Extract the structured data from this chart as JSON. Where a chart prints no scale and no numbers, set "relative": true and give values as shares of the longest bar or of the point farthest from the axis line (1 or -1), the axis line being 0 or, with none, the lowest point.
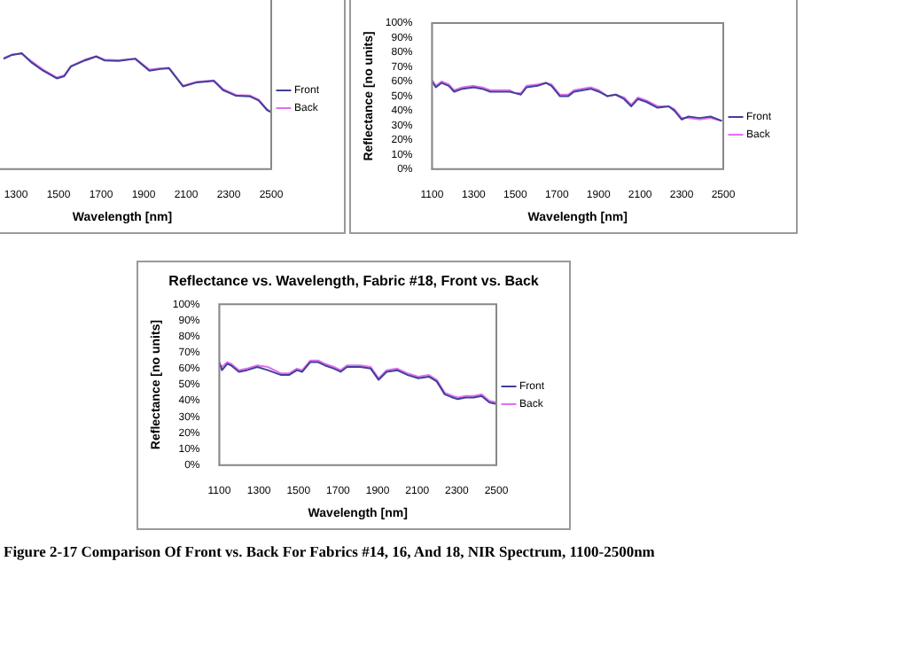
{
  "chart_data": [
    {
      "type": "line",
      "relative": true,
      "xlabel": "Wavelength [nm]",
      "legend": "right",
      "marker": "none",
      "line_style": "solid",
      "grid": false,
      "tick_labels": "x",
      "xlim": [
        1100,
        2500
      ],
      "xticks": [
        1300,
        1500,
        1700,
        1900,
        2100,
        2300,
        2500
      ],
      "series": [
        {
          "name": "Front",
          "color": "#404098",
          "x": [
            1242,
            1282,
            1327,
            1374,
            1427,
            1492,
            1527,
            1558,
            1624,
            1677,
            1716,
            1782,
            1861,
            1927,
            1980,
            2019,
            2085,
            2151,
            2230,
            2275,
            2335,
            2401,
            2441,
            2481,
            2500
          ],
          "values": [
            0.952,
            0.986,
            1,
            0.919,
            0.85,
            0.783,
            0.802,
            0.885,
            0.938,
            0.972,
            0.938,
            0.933,
            0.952,
            0.85,
            0.864,
            0.871,
            0.714,
            0.749,
            0.762,
            0.68,
            0.633,
            0.627,
            0.592,
            0.509,
            0.491
          ]
        },
        {
          "name": "Back",
          "color": "#e070f0",
          "x": [
            1242,
            1282,
            1327,
            1374,
            1427,
            1492,
            1527,
            1558,
            1624,
            1677,
            1716,
            1782,
            1861,
            1927,
            1980,
            2019,
            2085,
            2151,
            2230,
            2275,
            2335,
            2401,
            2441,
            2481,
            2500
          ],
          "values": [
            0.96,
            0.99,
            0.995,
            0.93,
            0.86,
            0.79,
            0.81,
            0.89,
            0.945,
            0.975,
            0.945,
            0.94,
            0.955,
            0.86,
            0.87,
            0.875,
            0.72,
            0.755,
            0.765,
            0.69,
            0.64,
            0.635,
            0.6,
            0.515,
            0.495
          ]
        }
      ]
    },
    {
      "type": "line",
      "xlabel": "Wavelength [nm]",
      "ylabel": "Reflectance [no units]",
      "legend": "right",
      "marker": "none",
      "line_style": "solid",
      "grid": false,
      "xlim": [
        1100,
        2500
      ],
      "xticks": [
        1100,
        1300,
        1500,
        1700,
        1900,
        2100,
        2300,
        2500
      ],
      "ylim": [
        0,
        100
      ],
      "yticks": [
        {
          "value": 0,
          "label": "0%"
        },
        {
          "value": 10,
          "label": "10%"
        },
        {
          "value": 20,
          "label": "20%"
        },
        {
          "value": 30,
          "label": "30%"
        },
        {
          "value": 40,
          "label": "40%"
        },
        {
          "value": 50,
          "label": "50%"
        },
        {
          "value": 60,
          "label": "60%"
        },
        {
          "value": 70,
          "label": "70%"
        },
        {
          "value": 80,
          "label": "80%"
        },
        {
          "value": 90,
          "label": "90%"
        },
        {
          "value": 100,
          "label": "100%"
        }
      ],
      "series": [
        {
          "name": "Front",
          "color": "#404098",
          "x": [
            1100,
            1118,
            1146,
            1180,
            1206,
            1246,
            1300,
            1340,
            1380,
            1474,
            1500,
            1527,
            1554,
            1607,
            1648,
            1674,
            1714,
            1755,
            1782,
            1862,
            1902,
            1942,
            1983,
            2023,
            2058,
            2090,
            2131,
            2184,
            2238,
            2265,
            2300,
            2332,
            2386,
            2439,
            2493
          ],
          "values": [
            60,
            56,
            59,
            57,
            53,
            55,
            56,
            55,
            53,
            53,
            52,
            51,
            56,
            57,
            59,
            57,
            50,
            50,
            53,
            55,
            53,
            50,
            51,
            48,
            43,
            48,
            46,
            42,
            43,
            40,
            34,
            36,
            35,
            36,
            33
          ]
        },
        {
          "name": "Back",
          "color": "#e070f0",
          "x": [
            1100,
            1118,
            1146,
            1180,
            1206,
            1246,
            1300,
            1340,
            1380,
            1474,
            1500,
            1527,
            1554,
            1607,
            1648,
            1674,
            1714,
            1755,
            1782,
            1862,
            1902,
            1942,
            1983,
            2023,
            2058,
            2090,
            2131,
            2184,
            2238,
            2265,
            2300,
            2332,
            2386,
            2439,
            2493
          ],
          "values": [
            61,
            57,
            60,
            58,
            54,
            56,
            57,
            56,
            54,
            54,
            52,
            52,
            57,
            58,
            59,
            58,
            51,
            51,
            54,
            56,
            54,
            50,
            51,
            49,
            44,
            49,
            47,
            43,
            43,
            41,
            35,
            35,
            34,
            35,
            33
          ]
        }
      ]
    },
    {
      "type": "line",
      "title": "Reflectance vs. Wavelength, Fabric #18, Front vs. Back",
      "xlabel": "Wavelength [nm]",
      "ylabel": "Reflectance [no units]",
      "legend": "right",
      "marker": "none",
      "line_style": "solid",
      "grid": false,
      "xlim": [
        1100,
        2500
      ],
      "xticks": [
        1100,
        1300,
        1500,
        1700,
        1900,
        2100,
        2300,
        2500
      ],
      "ylim": [
        0,
        100
      ],
      "yticks": [
        {
          "value": 0,
          "label": "0%"
        },
        {
          "value": 10,
          "label": "10%"
        },
        {
          "value": 20,
          "label": "20%"
        },
        {
          "value": 30,
          "label": "30%"
        },
        {
          "value": 40,
          "label": "40%"
        },
        {
          "value": 50,
          "label": "50%"
        },
        {
          "value": 60,
          "label": "60%"
        },
        {
          "value": 70,
          "label": "70%"
        },
        {
          "value": 80,
          "label": "80%"
        },
        {
          "value": 90,
          "label": "90%"
        },
        {
          "value": 100,
          "label": "100%"
        }
      ],
      "annotations": [
        "Figure 2-17  Comparison Of Front vs. Back For Fabrics #14, 16, And 18, NIR Spectrum, 1100-2500nm"
      ],
      "series": [
        {
          "name": "Front",
          "color": "#404098",
          "x": [
            1100,
            1113,
            1140,
            1159,
            1199,
            1239,
            1292,
            1345,
            1412,
            1452,
            1492,
            1519,
            1559,
            1599,
            1633,
            1679,
            1713,
            1745,
            1812,
            1865,
            1905,
            1945,
            1999,
            2052,
            2105,
            2159,
            2199,
            2239,
            2279,
            2305,
            2345,
            2385,
            2425,
            2465,
            2500
          ],
          "values": [
            64,
            59,
            63,
            62,
            58,
            59,
            61,
            59,
            56,
            56,
            59,
            58,
            64,
            64,
            62,
            60,
            58,
            61,
            61,
            60,
            53,
            58,
            59,
            56,
            54,
            55,
            52,
            44,
            42,
            41,
            42,
            42,
            43,
            39,
            38
          ]
        },
        {
          "name": "Back",
          "color": "#e070f0",
          "x": [
            1100,
            1113,
            1140,
            1159,
            1199,
            1239,
            1292,
            1345,
            1412,
            1452,
            1492,
            1519,
            1559,
            1599,
            1633,
            1679,
            1713,
            1745,
            1812,
            1865,
            1905,
            1945,
            1999,
            2052,
            2105,
            2159,
            2199,
            2239,
            2279,
            2305,
            2345,
            2385,
            2425,
            2465,
            2500
          ],
          "values": [
            63,
            61,
            64,
            63,
            59,
            60,
            62,
            61,
            57,
            57,
            60,
            59,
            65,
            65,
            63,
            61,
            59,
            62,
            62,
            61,
            54,
            59,
            60,
            57,
            55,
            56,
            53,
            45,
            43,
            42,
            43,
            43,
            44,
            40,
            39
          ]
        }
      ]
    }
  ]
}
